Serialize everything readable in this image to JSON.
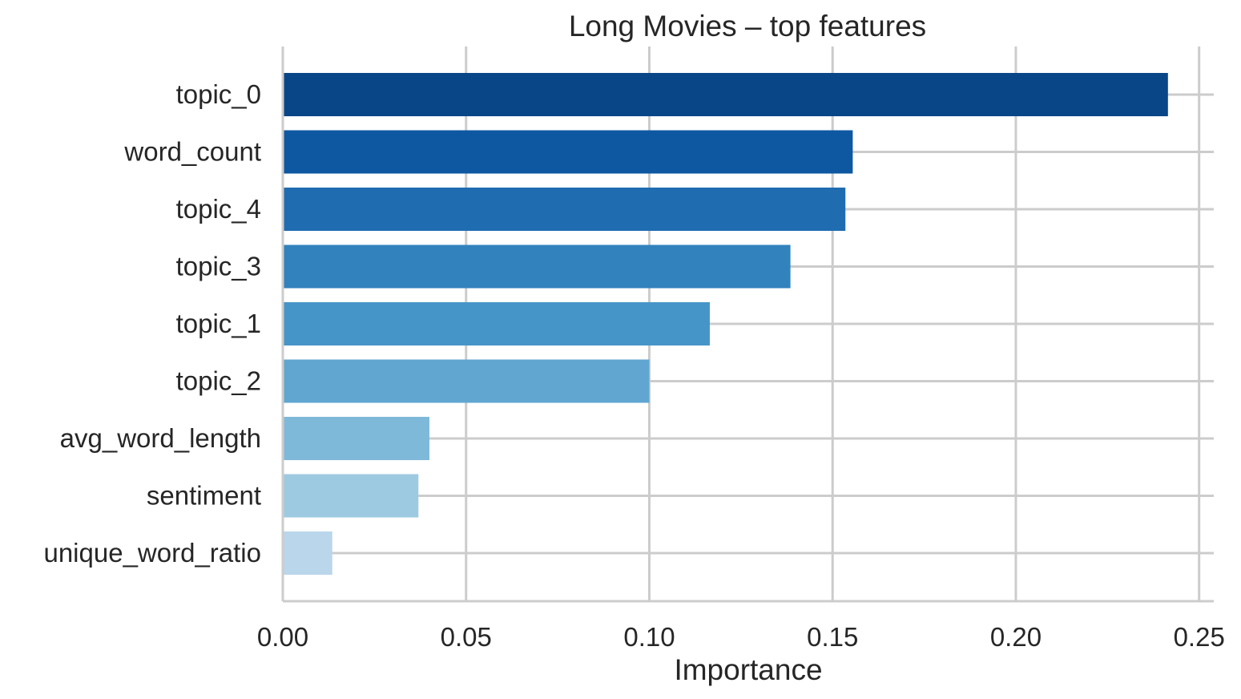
{
  "chart_data": {
    "type": "bar",
    "orientation": "horizontal",
    "title": "Long Movies – top features",
    "xlabel": "Importance",
    "ylabel": "",
    "categories": [
      "topic_0",
      "word_count",
      "topic_4",
      "topic_3",
      "topic_1",
      "topic_2",
      "avg_word_length",
      "sentiment",
      "unique_word_ratio"
    ],
    "values": [
      0.2415,
      0.1555,
      0.1535,
      0.1385,
      0.1165,
      0.1,
      0.04,
      0.037,
      0.0135
    ],
    "colors": [
      "#084688",
      "#0e58a2",
      "#1f6cb1",
      "#3282bd",
      "#4695c8",
      "#60a6d1",
      "#7fb9da",
      "#9ecae1",
      "#bad6eb"
    ],
    "xlim": [
      0,
      0.254
    ],
    "xticks": [
      0.0,
      0.05,
      0.1,
      0.15,
      0.2,
      0.25
    ],
    "xtick_labels": [
      "0.00",
      "0.05",
      "0.10",
      "0.15",
      "0.20",
      "0.25"
    ],
    "grid": true,
    "legend": "none"
  }
}
